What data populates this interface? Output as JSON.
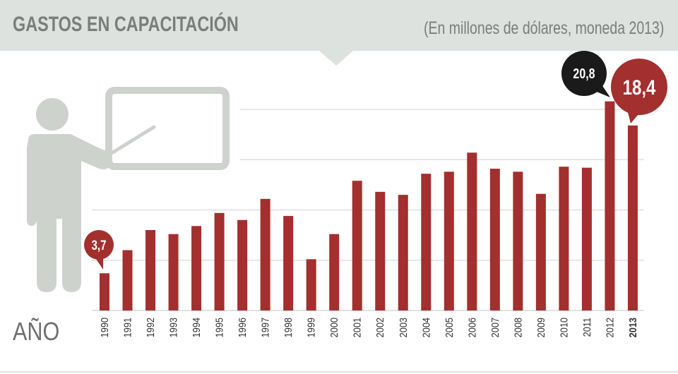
{
  "header": {
    "title": "GASTOS EN CAPACITACIÓN",
    "subtitle": "(En millones de dólares, moneda 2013)"
  },
  "axis_label": "AÑO",
  "colors": {
    "bar": "#a32f2e",
    "header": "#dde2de",
    "callout_2012": "#1a1a1a",
    "icon": "#cdd2cd"
  },
  "icon": "teacher-with-board-icon",
  "chart_data": {
    "type": "bar",
    "title": "GASTOS EN CAPACITACIÓN",
    "subtitle": "(En millones de dólares, moneda 2013)",
    "xlabel": "AÑO",
    "ylabel": "",
    "ylim": [
      0,
      22
    ],
    "grid": true,
    "categories": [
      "1990",
      "1991",
      "1992",
      "1993",
      "1994",
      "1995",
      "1996",
      "1997",
      "1998",
      "1999",
      "2000",
      "2001",
      "2002",
      "2003",
      "2004",
      "2005",
      "2006",
      "2007",
      "2008",
      "2009",
      "2010",
      "2011",
      "2012",
      "2013"
    ],
    "values": [
      3.7,
      6.0,
      8.0,
      7.6,
      8.4,
      9.7,
      9.0,
      11.1,
      9.4,
      5.1,
      7.6,
      12.9,
      11.8,
      11.5,
      13.6,
      13.8,
      15.7,
      14.1,
      13.8,
      11.6,
      14.3,
      14.2,
      20.8,
      18.4
    ],
    "data_labels": [
      {
        "category": "1990",
        "text": "3,7"
      },
      {
        "category": "2012",
        "text": "20,8"
      },
      {
        "category": "2013",
        "text": "18,4"
      }
    ]
  }
}
